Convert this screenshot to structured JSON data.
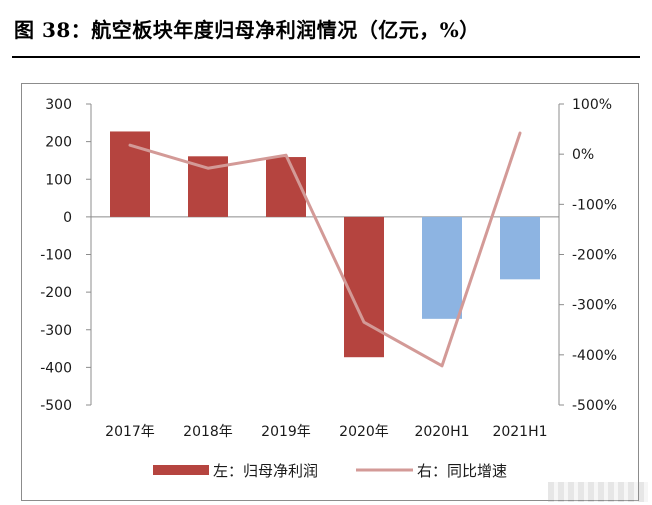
{
  "title": "图 38：航空板块年度归母净利润情况（亿元，%）",
  "chart_data": {
    "type": "bar",
    "categories": [
      "2017年",
      "2018年",
      "2019年",
      "2020年",
      "2020H1",
      "2021H1"
    ],
    "series": [
      {
        "name": "左：归母净利润",
        "chart_type": "bar",
        "axis": "left",
        "values": [
          227,
          161,
          159,
          -373,
          -271,
          -166
        ],
        "colors": [
          "#b5443f",
          "#b5443f",
          "#b5443f",
          "#b5443f",
          "#8db4e2",
          "#8db4e2"
        ]
      },
      {
        "name": "右：同比增速",
        "chart_type": "line",
        "axis": "right",
        "values": [
          18,
          -28,
          -2,
          -335,
          -422,
          42
        ],
        "color": "#d39a97"
      }
    ],
    "left_axis": {
      "ylim": [
        -500,
        300
      ],
      "ticks": [
        "300",
        "200",
        "100",
        "0",
        "-100",
        "-200",
        "-300",
        "-400",
        "-500"
      ]
    },
    "right_axis": {
      "ylim": [
        -500,
        100
      ],
      "ticks": [
        "100%",
        "0%",
        "-100%",
        "-200%",
        "-300%",
        "-400%",
        "-500%"
      ]
    },
    "grid": false,
    "legend_position": "bottom"
  }
}
